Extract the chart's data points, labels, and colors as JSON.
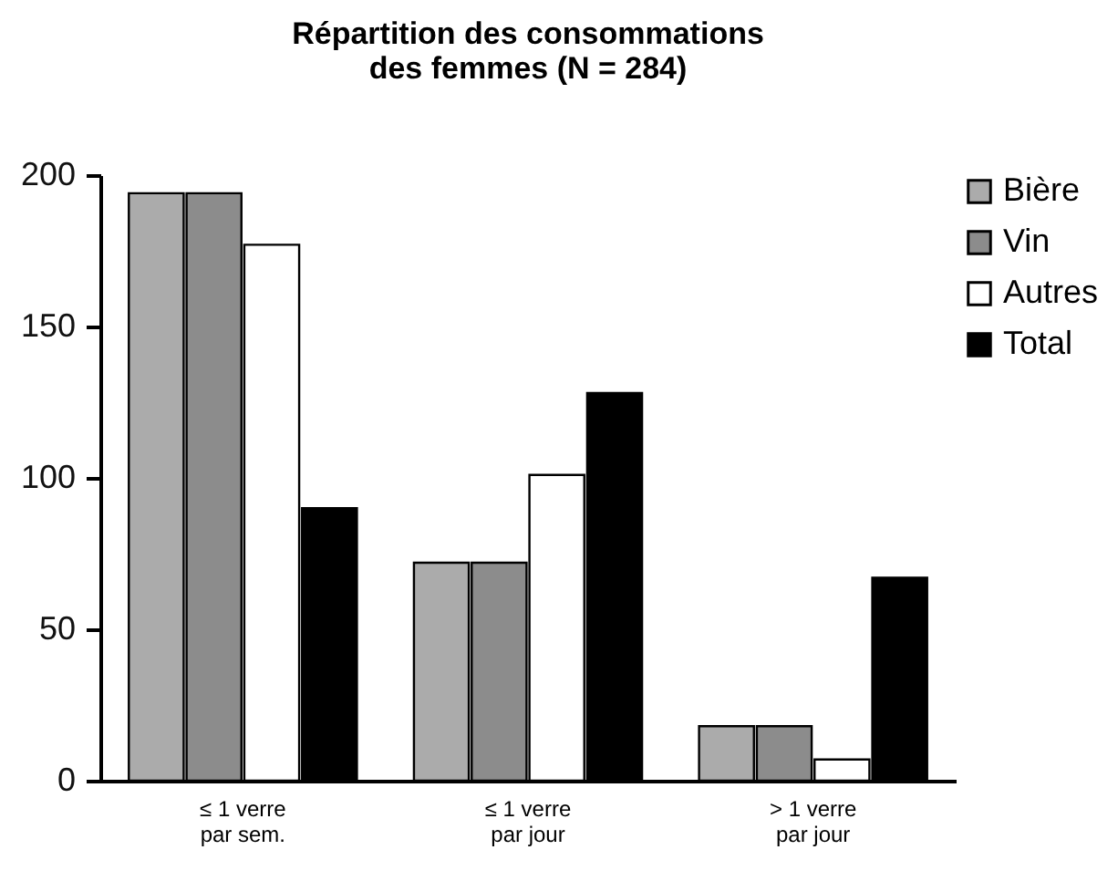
{
  "chart_data": {
    "type": "bar",
    "title": [
      "Répartition des consommations",
      "des femmes (N = 284)"
    ],
    "categories": [
      "≤ 1 verre\npar sem.",
      "≤ 1 verre\npar jour",
      "> 1 verre\npar jour"
    ],
    "series": [
      {
        "name": "Bière",
        "color": "#ababab",
        "values": [
          194,
          72,
          18
        ]
      },
      {
        "name": "Vin",
        "color": "#8c8c8c",
        "values": [
          194,
          72,
          18
        ]
      },
      {
        "name": "Autres",
        "color": "#ffffff",
        "values": [
          177,
          101,
          7
        ]
      },
      {
        "name": "Total",
        "color": "#000000",
        "values": [
          90,
          128,
          67
        ]
      }
    ],
    "ylim": [
      0,
      200
    ],
    "yticks": [
      0,
      50,
      100,
      150,
      200
    ],
    "grid": false,
    "legend": "right"
  }
}
